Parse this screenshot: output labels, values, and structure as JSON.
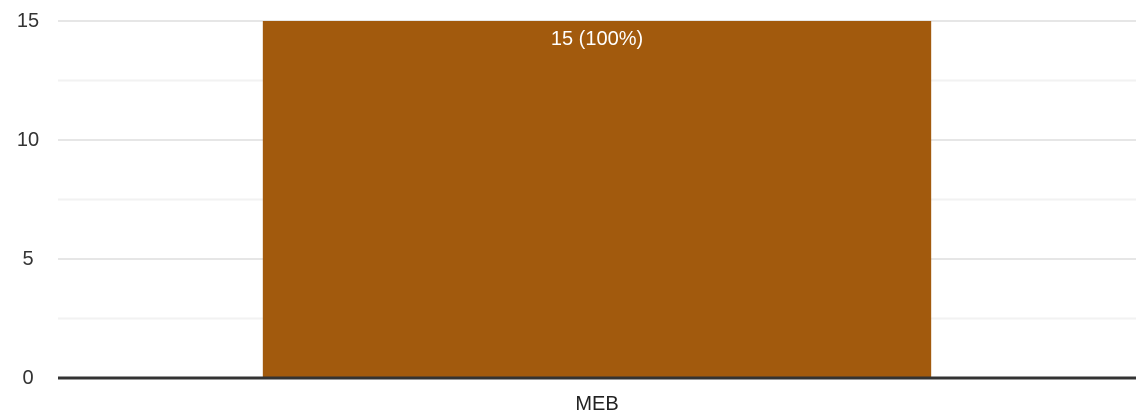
{
  "chart_data": {
    "type": "bar",
    "categories": [
      "MEB"
    ],
    "values": [
      15
    ],
    "data_labels": [
      "15 (100%)"
    ],
    "title": "",
    "xlabel": "",
    "ylabel": "",
    "ylim": [
      0,
      15
    ],
    "y_ticks": [
      0,
      5,
      10,
      15
    ],
    "minor_gridlines": true,
    "grid": true,
    "legend": "none",
    "bar_color": "#a25a0d",
    "grid_color": "#e6e6e6",
    "minor_grid_color": "#f2f2f2",
    "axis_color": "#333333"
  }
}
